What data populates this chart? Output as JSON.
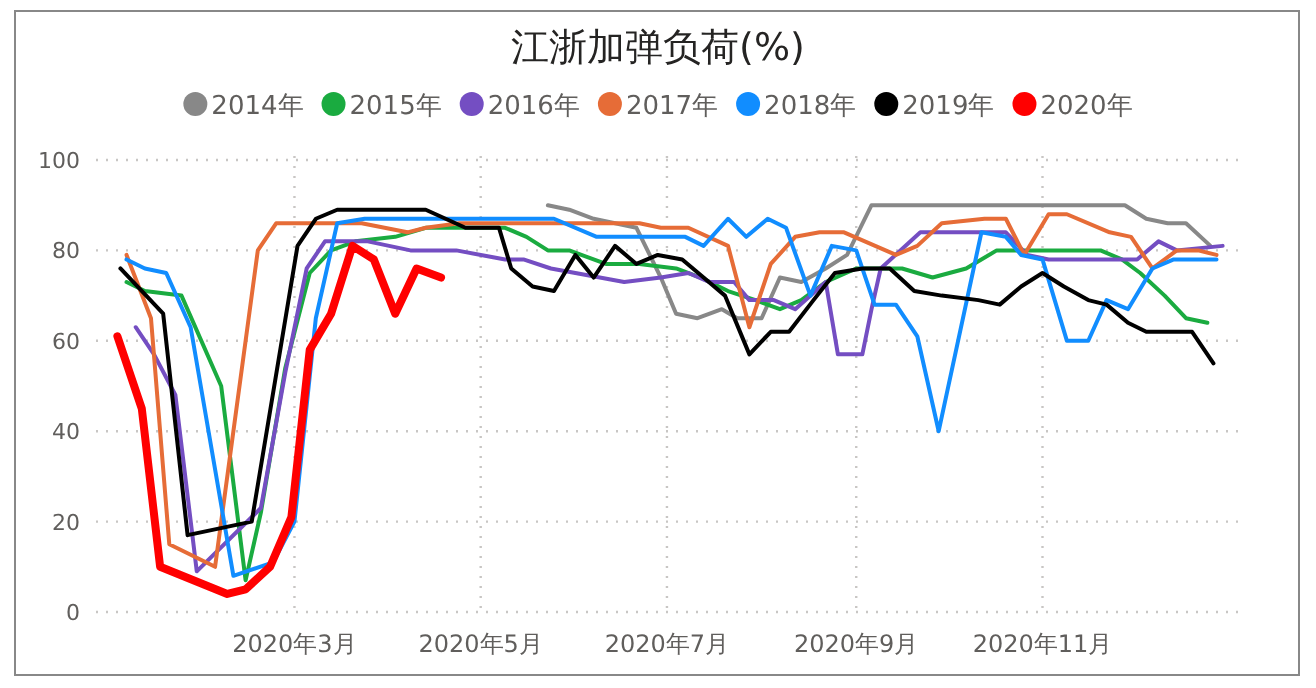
{
  "chart_data": {
    "type": "line",
    "title": "江浙加弹负荷(%)",
    "legend": "top",
    "grid": true,
    "marker": "none",
    "line_style": "solid",
    "xlim": [
      "2019-12-27",
      "2021-01-06"
    ],
    "ylim": [
      0,
      100
    ],
    "yticks": [
      0,
      20,
      40,
      60,
      80,
      100
    ],
    "xticks": [
      {
        "value": "2020-03-01",
        "label": "2020年3月"
      },
      {
        "value": "2020-05-01",
        "label": "2020年5月"
      },
      {
        "value": "2020-07-01",
        "label": "2020年7月"
      },
      {
        "value": "2020-09-01",
        "label": "2020年9月"
      },
      {
        "value": "2020-11-01",
        "label": "2020年11月"
      }
    ],
    "series": [
      {
        "name": "2014年",
        "color": "#888888",
        "x": [
          "2020-05-23",
          "2020-05-30",
          "2020-06-07",
          "2020-06-21",
          "2020-06-29",
          "2020-07-04",
          "2020-07-11",
          "2020-07-19",
          "2020-07-24",
          "2020-08-01",
          "2020-08-07",
          "2020-08-14",
          "2020-08-22",
          "2020-08-29",
          "2020-09-06",
          "2020-11-28",
          "2020-12-05",
          "2020-12-12",
          "2020-12-18",
          "2020-12-26"
        ],
        "values": [
          90,
          89,
          87,
          85,
          74,
          66,
          65,
          67,
          65,
          65,
          74,
          73,
          76,
          79,
          90,
          90,
          87,
          86,
          86,
          81
        ]
      },
      {
        "name": "2015年",
        "color": "#1aab40",
        "x": [
          "2020-01-06",
          "2020-01-12",
          "2020-01-24",
          "2020-02-06",
          "2020-02-14",
          "2020-02-19",
          "2020-02-27",
          "2020-03-06",
          "2020-03-13",
          "2020-03-21",
          "2020-04-03",
          "2020-04-13",
          "2020-04-24",
          "2020-05-09",
          "2020-05-16",
          "2020-05-23",
          "2020-05-30",
          "2020-06-11",
          "2020-06-22",
          "2020-07-04",
          "2020-07-12",
          "2020-07-21",
          "2020-07-30",
          "2020-08-07",
          "2020-08-14",
          "2020-08-22",
          "2020-09-01",
          "2020-09-16",
          "2020-09-26",
          "2020-10-07",
          "2020-10-17",
          "2020-11-20",
          "2020-11-27",
          "2020-12-03",
          "2020-12-11",
          "2020-12-18",
          "2020-12-25"
        ],
        "values": [
          73,
          71,
          70,
          50,
          7,
          22,
          54,
          75,
          80,
          82,
          83,
          85,
          85,
          85,
          83,
          80,
          80,
          77,
          77,
          76,
          74,
          71,
          69,
          67,
          69,
          73,
          76,
          76,
          74,
          76,
          80,
          80,
          78,
          75,
          70,
          65,
          64
        ]
      },
      {
        "name": "2016年",
        "color": "#744ec2",
        "x": [
          "2020-01-09",
          "2020-01-15",
          "2020-01-22",
          "2020-01-29",
          "2020-02-19",
          "2020-02-27",
          "2020-03-05",
          "2020-03-11",
          "2020-03-25",
          "2020-04-08",
          "2020-04-23",
          "2020-05-09",
          "2020-05-15",
          "2020-05-24",
          "2020-06-01",
          "2020-06-17",
          "2020-06-29",
          "2020-07-08",
          "2020-07-15",
          "2020-07-23",
          "2020-07-28",
          "2020-08-05",
          "2020-08-12",
          "2020-08-22",
          "2020-08-26",
          "2020-09-03",
          "2020-09-06",
          "2020-09-09",
          "2020-09-22",
          "2020-10-20",
          "2020-10-27",
          "2020-11-03",
          "2020-12-02",
          "2020-12-09",
          "2020-12-15",
          "2020-12-30"
        ],
        "values": [
          63,
          57,
          48,
          9,
          23,
          53,
          76,
          82,
          82,
          80,
          80,
          78,
          78,
          76,
          75,
          73,
          74,
          75,
          73,
          73,
          69,
          69,
          67,
          73,
          57,
          57,
          67,
          76,
          84,
          84,
          79,
          78,
          78,
          82,
          80,
          81
        ]
      },
      {
        "name": "2017年",
        "color": "#e66c37",
        "x": [
          "2020-01-06",
          "2020-01-14",
          "2020-01-20",
          "2020-02-04",
          "2020-02-18",
          "2020-02-24",
          "2020-03-23",
          "2020-04-07",
          "2020-04-13",
          "2020-04-24",
          "2020-06-22",
          "2020-06-29",
          "2020-07-08",
          "2020-07-21",
          "2020-07-28",
          "2020-08-04",
          "2020-08-12",
          "2020-08-20",
          "2020-08-28",
          "2020-09-14",
          "2020-09-21",
          "2020-09-29",
          "2020-10-13",
          "2020-10-20",
          "2020-10-26",
          "2020-11-03",
          "2020-11-09",
          "2020-11-23",
          "2020-11-30",
          "2020-12-07",
          "2020-12-15",
          "2020-12-22",
          "2020-12-28"
        ],
        "values": [
          79,
          65,
          15,
          10,
          80,
          86,
          86,
          84,
          85,
          86,
          86,
          85,
          85,
          81,
          63,
          77,
          83,
          84,
          84,
          79,
          81,
          86,
          87,
          87,
          79,
          88,
          88,
          84,
          83,
          76,
          80,
          80,
          79
        ]
      },
      {
        "name": "2018年",
        "color": "#118dff",
        "x": [
          "2020-01-06",
          "2020-01-12",
          "2020-01-19",
          "2020-01-27",
          "2020-02-10",
          "2020-02-23",
          "2020-03-01",
          "2020-03-08",
          "2020-03-15",
          "2020-03-24",
          "2020-04-24",
          "2020-05-25",
          "2020-06-08",
          "2020-07-07",
          "2020-07-13",
          "2020-07-21",
          "2020-07-27",
          "2020-08-03",
          "2020-08-09",
          "2020-08-17",
          "2020-08-24",
          "2020-09-01",
          "2020-09-07",
          "2020-09-14",
          "2020-09-21",
          "2020-09-28",
          "2020-10-12",
          "2020-10-20",
          "2020-10-25",
          "2020-11-01",
          "2020-11-09",
          "2020-11-16",
          "2020-11-22",
          "2020-11-29",
          "2020-12-07",
          "2020-12-14",
          "2020-12-28"
        ],
        "values": [
          78,
          76,
          75,
          63,
          8,
          11,
          20,
          65,
          86,
          87,
          87,
          87,
          83,
          83,
          81,
          87,
          83,
          87,
          85,
          70,
          81,
          80,
          68,
          68,
          61,
          40,
          84,
          83,
          79,
          78,
          60,
          60,
          69,
          67,
          76,
          78,
          78
        ]
      },
      {
        "name": "2019年",
        "color": "#000000",
        "x": [
          "2020-01-04",
          "2020-01-18",
          "2020-01-26",
          "2020-02-16",
          "2020-03-02",
          "2020-03-08",
          "2020-03-15",
          "2020-04-13",
          "2020-04-26",
          "2020-05-07",
          "2020-05-11",
          "2020-05-18",
          "2020-05-25",
          "2020-06-01",
          "2020-06-07",
          "2020-06-14",
          "2020-06-21",
          "2020-06-28",
          "2020-07-06",
          "2020-07-13",
          "2020-07-20",
          "2020-07-28",
          "2020-08-04",
          "2020-08-10",
          "2020-08-18",
          "2020-08-25",
          "2020-09-03",
          "2020-09-12",
          "2020-09-20",
          "2020-09-29",
          "2020-10-11",
          "2020-10-18",
          "2020-10-25",
          "2020-11-01",
          "2020-11-08",
          "2020-11-16",
          "2020-11-22",
          "2020-11-29",
          "2020-12-05",
          "2020-12-20",
          "2020-12-27"
        ],
        "values": [
          76,
          66,
          17,
          20,
          81,
          87,
          89,
          89,
          85,
          85,
          76,
          72,
          71,
          79,
          74,
          81,
          77,
          79,
          78,
          74,
          70,
          57,
          62,
          62,
          69,
          75,
          76,
          76,
          71,
          70,
          69,
          68,
          72,
          75,
          72,
          69,
          68,
          64,
          62,
          62,
          55
        ]
      },
      {
        "name": "2020年",
        "color": "#ff0000",
        "x": [
          "2020-01-03",
          "2020-01-11",
          "2020-01-17",
          "2020-02-08",
          "2020-02-14",
          "2020-02-22",
          "2020-02-29",
          "2020-03-06",
          "2020-03-13",
          "2020-03-20",
          "2020-03-27",
          "2020-04-03",
          "2020-04-10",
          "2020-04-18"
        ],
        "values": [
          61,
          45,
          10,
          4,
          5,
          10,
          21,
          58,
          66,
          81,
          78,
          66,
          76,
          74
        ]
      }
    ]
  }
}
